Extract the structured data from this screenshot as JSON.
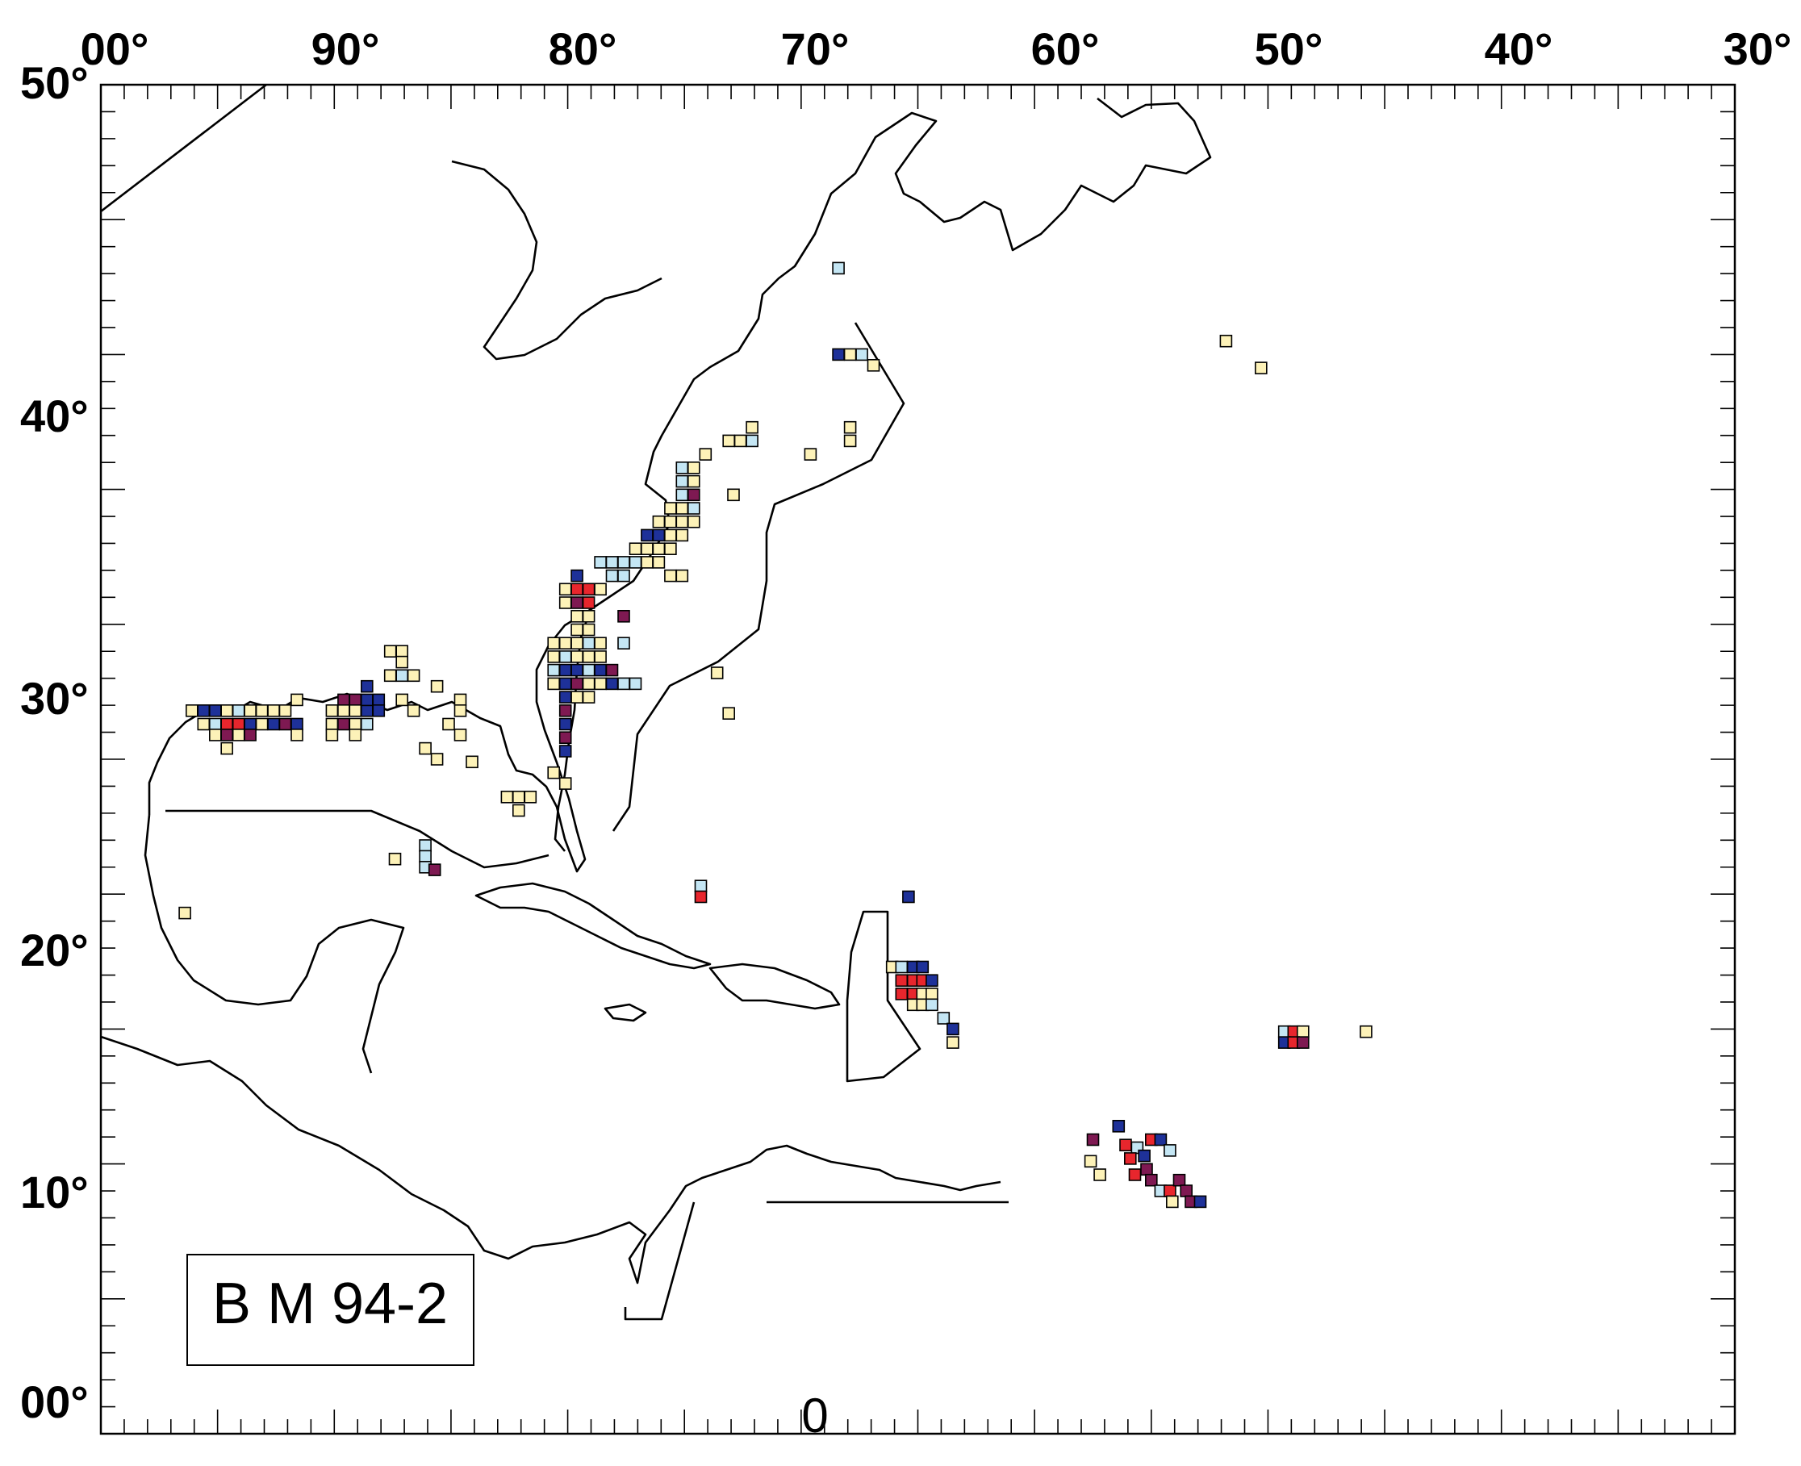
{
  "map": {
    "lon_range": [
      -100,
      -30
    ],
    "lat_range": [
      0,
      50
    ],
    "top_labels": [
      "00°",
      "90°",
      "80°",
      "70°",
      "60°",
      "50°",
      "40°",
      "30°"
    ],
    "left_labels": [
      "50°",
      "40°",
      "30°",
      "20°",
      "10°",
      "00°"
    ],
    "bottom_label": "0",
    "legend_text": "B M 94-2",
    "colors": {
      "yellow": "#fdf2b8",
      "lightblue": "#c4e6f4",
      "navy": "#1e3199",
      "red": "#e8262d",
      "purple": "#7e1952",
      "outline": "#000000"
    },
    "cells": [
      {
        "lon": -96.1,
        "lat": 26.8,
        "c": "yellow"
      },
      {
        "lon": -95.6,
        "lat": 26.8,
        "c": "navy"
      },
      {
        "lon": -95.1,
        "lat": 26.8,
        "c": "navy"
      },
      {
        "lon": -94.6,
        "lat": 26.8,
        "c": "yellow"
      },
      {
        "lon": -94.1,
        "lat": 26.8,
        "c": "lightblue"
      },
      {
        "lon": -93.6,
        "lat": 26.8,
        "c": "yellow"
      },
      {
        "lon": -93.1,
        "lat": 26.8,
        "c": "yellow"
      },
      {
        "lon": -92.6,
        "lat": 26.8,
        "c": "yellow"
      },
      {
        "lon": -92.1,
        "lat": 26.8,
        "c": "yellow"
      },
      {
        "lon": -91.6,
        "lat": 27.2,
        "c": "yellow"
      },
      {
        "lon": -95.6,
        "lat": 26.3,
        "c": "yellow"
      },
      {
        "lon": -95.1,
        "lat": 26.3,
        "c": "lightblue"
      },
      {
        "lon": -94.6,
        "lat": 26.3,
        "c": "red"
      },
      {
        "lon": -94.1,
        "lat": 26.3,
        "c": "red"
      },
      {
        "lon": -93.6,
        "lat": 26.3,
        "c": "navy"
      },
      {
        "lon": -93.1,
        "lat": 26.3,
        "c": "yellow"
      },
      {
        "lon": -92.6,
        "lat": 26.3,
        "c": "navy"
      },
      {
        "lon": -92.1,
        "lat": 26.3,
        "c": "purple"
      },
      {
        "lon": -91.6,
        "lat": 26.3,
        "c": "navy"
      },
      {
        "lon": -95.1,
        "lat": 25.9,
        "c": "yellow"
      },
      {
        "lon": -94.6,
        "lat": 25.9,
        "c": "purple"
      },
      {
        "lon": -94.1,
        "lat": 25.9,
        "c": "yellow"
      },
      {
        "lon": -93.6,
        "lat": 25.9,
        "c": "purple"
      },
      {
        "lon": -91.6,
        "lat": 25.9,
        "c": "yellow"
      },
      {
        "lon": -94.6,
        "lat": 25.4,
        "c": "yellow"
      },
      {
        "lon": -90.1,
        "lat": 26.8,
        "c": "yellow"
      },
      {
        "lon": -89.6,
        "lat": 27.2,
        "c": "purple"
      },
      {
        "lon": -89.1,
        "lat": 27.2,
        "c": "purple"
      },
      {
        "lon": -89.6,
        "lat": 26.8,
        "c": "yellow"
      },
      {
        "lon": -89.1,
        "lat": 26.8,
        "c": "yellow"
      },
      {
        "lon": -88.6,
        "lat": 26.8,
        "c": "navy"
      },
      {
        "lon": -88.6,
        "lat": 27.2,
        "c": "navy"
      },
      {
        "lon": -88.6,
        "lat": 27.7,
        "c": "navy"
      },
      {
        "lon": -88.1,
        "lat": 27.2,
        "c": "navy"
      },
      {
        "lon": -88.1,
        "lat": 26.8,
        "c": "navy"
      },
      {
        "lon": -90.1,
        "lat": 26.3,
        "c": "yellow"
      },
      {
        "lon": -89.6,
        "lat": 26.3,
        "c": "purple"
      },
      {
        "lon": -89.1,
        "lat": 26.3,
        "c": "yellow"
      },
      {
        "lon": -88.6,
        "lat": 26.3,
        "c": "lightblue"
      },
      {
        "lon": -90.1,
        "lat": 25.9,
        "c": "yellow"
      },
      {
        "lon": -89.1,
        "lat": 25.9,
        "c": "yellow"
      },
      {
        "lon": -87.6,
        "lat": 29.0,
        "c": "yellow"
      },
      {
        "lon": -87.1,
        "lat": 29.0,
        "c": "yellow"
      },
      {
        "lon": -87.1,
        "lat": 28.6,
        "c": "yellow"
      },
      {
        "lon": -87.6,
        "lat": 28.1,
        "c": "yellow"
      },
      {
        "lon": -87.1,
        "lat": 28.1,
        "c": "lightblue"
      },
      {
        "lon": -86.6,
        "lat": 28.1,
        "c": "yellow"
      },
      {
        "lon": -87.1,
        "lat": 27.2,
        "c": "yellow"
      },
      {
        "lon": -86.6,
        "lat": 26.8,
        "c": "yellow"
      },
      {
        "lon": -85.6,
        "lat": 27.7,
        "c": "yellow"
      },
      {
        "lon": -84.6,
        "lat": 27.2,
        "c": "yellow"
      },
      {
        "lon": -84.6,
        "lat": 26.8,
        "c": "yellow"
      },
      {
        "lon": -85.1,
        "lat": 26.3,
        "c": "yellow"
      },
      {
        "lon": -84.6,
        "lat": 25.9,
        "c": "yellow"
      },
      {
        "lon": -86.1,
        "lat": 25.4,
        "c": "yellow"
      },
      {
        "lon": -85.6,
        "lat": 25.0,
        "c": "yellow"
      },
      {
        "lon": -84.1,
        "lat": 24.9,
        "c": "yellow"
      },
      {
        "lon": -82.6,
        "lat": 23.6,
        "c": "yellow"
      },
      {
        "lon": -82.1,
        "lat": 23.6,
        "c": "yellow"
      },
      {
        "lon": -81.6,
        "lat": 23.6,
        "c": "yellow"
      },
      {
        "lon": -82.1,
        "lat": 23.1,
        "c": "yellow"
      },
      {
        "lon": -80.6,
        "lat": 24.5,
        "c": "yellow"
      },
      {
        "lon": -80.1,
        "lat": 24.1,
        "c": "yellow"
      },
      {
        "lon": -80.6,
        "lat": 29.3,
        "c": "yellow"
      },
      {
        "lon": -80.6,
        "lat": 28.8,
        "c": "yellow"
      },
      {
        "lon": -80.6,
        "lat": 28.3,
        "c": "lightblue"
      },
      {
        "lon": -80.6,
        "lat": 27.8,
        "c": "yellow"
      },
      {
        "lon": -80.1,
        "lat": 29.3,
        "c": "yellow"
      },
      {
        "lon": -80.1,
        "lat": 28.8,
        "c": "lightblue"
      },
      {
        "lon": -80.1,
        "lat": 28.3,
        "c": "navy"
      },
      {
        "lon": -80.1,
        "lat": 27.8,
        "c": "navy"
      },
      {
        "lon": -80.1,
        "lat": 27.3,
        "c": "navy"
      },
      {
        "lon": -80.1,
        "lat": 26.8,
        "c": "purple"
      },
      {
        "lon": -80.1,
        "lat": 26.3,
        "c": "navy"
      },
      {
        "lon": -80.1,
        "lat": 25.8,
        "c": "purple"
      },
      {
        "lon": -80.1,
        "lat": 25.3,
        "c": "navy"
      },
      {
        "lon": -79.6,
        "lat": 29.3,
        "c": "yellow"
      },
      {
        "lon": -79.6,
        "lat": 28.8,
        "c": "yellow"
      },
      {
        "lon": -79.6,
        "lat": 28.3,
        "c": "navy"
      },
      {
        "lon": -79.6,
        "lat": 27.8,
        "c": "purple"
      },
      {
        "lon": -79.6,
        "lat": 27.3,
        "c": "yellow"
      },
      {
        "lon": -79.1,
        "lat": 29.3,
        "c": "lightblue"
      },
      {
        "lon": -79.1,
        "lat": 28.8,
        "c": "yellow"
      },
      {
        "lon": -79.1,
        "lat": 28.3,
        "c": "lightblue"
      },
      {
        "lon": -79.1,
        "lat": 27.8,
        "c": "yellow"
      },
      {
        "lon": -79.1,
        "lat": 27.3,
        "c": "yellow"
      },
      {
        "lon": -78.6,
        "lat": 29.3,
        "c": "yellow"
      },
      {
        "lon": -78.6,
        "lat": 28.8,
        "c": "yellow"
      },
      {
        "lon": -78.6,
        "lat": 28.3,
        "c": "navy"
      },
      {
        "lon": -78.6,
        "lat": 27.8,
        "c": "yellow"
      },
      {
        "lon": -78.1,
        "lat": 28.3,
        "c": "purple"
      },
      {
        "lon": -78.1,
        "lat": 27.8,
        "c": "navy"
      },
      {
        "lon": -77.6,
        "lat": 27.8,
        "c": "lightblue"
      },
      {
        "lon": -77.1,
        "lat": 27.8,
        "c": "lightblue"
      },
      {
        "lon": -79.6,
        "lat": 31.8,
        "c": "navy"
      },
      {
        "lon": -79.6,
        "lat": 31.3,
        "c": "red"
      },
      {
        "lon": -79.1,
        "lat": 31.3,
        "c": "red"
      },
      {
        "lon": -79.6,
        "lat": 30.8,
        "c": "purple"
      },
      {
        "lon": -79.1,
        "lat": 30.8,
        "c": "red"
      },
      {
        "lon": -80.1,
        "lat": 31.3,
        "c": "yellow"
      },
      {
        "lon": -80.1,
        "lat": 30.8,
        "c": "yellow"
      },
      {
        "lon": -79.6,
        "lat": 30.3,
        "c": "yellow"
      },
      {
        "lon": -79.1,
        "lat": 30.3,
        "c": "yellow"
      },
      {
        "lon": -79.6,
        "lat": 29.8,
        "c": "yellow"
      },
      {
        "lon": -79.1,
        "lat": 29.8,
        "c": "yellow"
      },
      {
        "lon": -78.6,
        "lat": 31.3,
        "c": "yellow"
      },
      {
        "lon": -78.1,
        "lat": 31.8,
        "c": "lightblue"
      },
      {
        "lon": -77.6,
        "lat": 31.8,
        "c": "lightblue"
      },
      {
        "lon": -77.6,
        "lat": 30.3,
        "c": "purple"
      },
      {
        "lon": -77.6,
        "lat": 29.3,
        "c": "lightblue"
      },
      {
        "lon": -78.6,
        "lat": 32.3,
        "c": "lightblue"
      },
      {
        "lon": -78.1,
        "lat": 32.3,
        "c": "lightblue"
      },
      {
        "lon": -77.6,
        "lat": 32.3,
        "c": "lightblue"
      },
      {
        "lon": -77.1,
        "lat": 32.3,
        "c": "lightblue"
      },
      {
        "lon": -76.6,
        "lat": 32.3,
        "c": "yellow"
      },
      {
        "lon": -76.1,
        "lat": 32.3,
        "c": "yellow"
      },
      {
        "lon": -77.1,
        "lat": 32.8,
        "c": "yellow"
      },
      {
        "lon": -76.6,
        "lat": 32.8,
        "c": "yellow"
      },
      {
        "lon": -76.1,
        "lat": 32.8,
        "c": "yellow"
      },
      {
        "lon": -75.6,
        "lat": 32.8,
        "c": "yellow"
      },
      {
        "lon": -76.6,
        "lat": 33.3,
        "c": "navy"
      },
      {
        "lon": -76.1,
        "lat": 33.3,
        "c": "navy"
      },
      {
        "lon": -75.6,
        "lat": 33.3,
        "c": "yellow"
      },
      {
        "lon": -75.1,
        "lat": 33.3,
        "c": "yellow"
      },
      {
        "lon": -76.1,
        "lat": 33.8,
        "c": "yellow"
      },
      {
        "lon": -75.6,
        "lat": 33.8,
        "c": "yellow"
      },
      {
        "lon": -75.1,
        "lat": 33.8,
        "c": "yellow"
      },
      {
        "lon": -74.6,
        "lat": 33.8,
        "c": "yellow"
      },
      {
        "lon": -75.6,
        "lat": 34.3,
        "c": "yellow"
      },
      {
        "lon": -75.1,
        "lat": 34.3,
        "c": "yellow"
      },
      {
        "lon": -74.6,
        "lat": 34.3,
        "c": "lightblue"
      },
      {
        "lon": -75.1,
        "lat": 34.8,
        "c": "lightblue"
      },
      {
        "lon": -74.6,
        "lat": 34.8,
        "c": "purple"
      },
      {
        "lon": -75.1,
        "lat": 35.3,
        "c": "lightblue"
      },
      {
        "lon": -74.6,
        "lat": 35.3,
        "c": "yellow"
      },
      {
        "lon": -75.1,
        "lat": 35.8,
        "c": "lightblue"
      },
      {
        "lon": -74.6,
        "lat": 35.8,
        "c": "yellow"
      },
      {
        "lon": -74.1,
        "lat": 36.3,
        "c": "yellow"
      },
      {
        "lon": -73.1,
        "lat": 36.8,
        "c": "yellow"
      },
      {
        "lon": -72.6,
        "lat": 36.8,
        "c": "yellow"
      },
      {
        "lon": -72.1,
        "lat": 36.8,
        "c": "lightblue"
      },
      {
        "lon": -72.1,
        "lat": 37.3,
        "c": "yellow"
      },
      {
        "lon": -75.6,
        "lat": 31.8,
        "c": "yellow"
      },
      {
        "lon": -75.1,
        "lat": 31.8,
        "c": "yellow"
      },
      {
        "lon": -72.9,
        "lat": 34.8,
        "c": "yellow"
      },
      {
        "lon": -69.6,
        "lat": 36.3,
        "c": "yellow"
      },
      {
        "lon": -67.9,
        "lat": 37.3,
        "c": "yellow"
      },
      {
        "lon": -67.9,
        "lat": 36.8,
        "c": "yellow"
      },
      {
        "lon": -68.4,
        "lat": 40.0,
        "c": "navy"
      },
      {
        "lon": -67.9,
        "lat": 40.0,
        "c": "yellow"
      },
      {
        "lon": -67.4,
        "lat": 40.0,
        "c": "lightblue"
      },
      {
        "lon": -66.9,
        "lat": 39.6,
        "c": "yellow"
      },
      {
        "lon": -68.4,
        "lat": 43.2,
        "c": "lightblue"
      },
      {
        "lon": -73.6,
        "lat": 28.2,
        "c": "yellow"
      },
      {
        "lon": -73.1,
        "lat": 26.7,
        "c": "yellow"
      },
      {
        "lon": -51.8,
        "lat": 40.5,
        "c": "yellow"
      },
      {
        "lon": -50.3,
        "lat": 39.5,
        "c": "yellow"
      },
      {
        "lon": -86.1,
        "lat": 21.8,
        "c": "lightblue"
      },
      {
        "lon": -86.1,
        "lat": 21.4,
        "c": "lightblue"
      },
      {
        "lon": -86.1,
        "lat": 21.0,
        "c": "lightblue"
      },
      {
        "lon": -85.7,
        "lat": 20.9,
        "c": "purple"
      },
      {
        "lon": -87.4,
        "lat": 21.3,
        "c": "yellow"
      },
      {
        "lon": -96.4,
        "lat": 19.3,
        "c": "yellow"
      },
      {
        "lon": -74.3,
        "lat": 20.3,
        "c": "lightblue"
      },
      {
        "lon": -74.3,
        "lat": 19.9,
        "c": "red"
      },
      {
        "lon": -65.4,
        "lat": 19.9,
        "c": "navy"
      },
      {
        "lon": -66.1,
        "lat": 17.3,
        "c": "yellow"
      },
      {
        "lon": -65.7,
        "lat": 17.3,
        "c": "lightblue"
      },
      {
        "lon": -65.2,
        "lat": 17.3,
        "c": "navy"
      },
      {
        "lon": -64.8,
        "lat": 17.3,
        "c": "navy"
      },
      {
        "lon": -65.7,
        "lat": 16.8,
        "c": "red"
      },
      {
        "lon": -65.2,
        "lat": 16.8,
        "c": "red"
      },
      {
        "lon": -64.8,
        "lat": 16.8,
        "c": "red"
      },
      {
        "lon": -64.4,
        "lat": 16.8,
        "c": "navy"
      },
      {
        "lon": -65.7,
        "lat": 16.3,
        "c": "red"
      },
      {
        "lon": -65.2,
        "lat": 16.3,
        "c": "red"
      },
      {
        "lon": -64.8,
        "lat": 16.3,
        "c": "yellow"
      },
      {
        "lon": -64.4,
        "lat": 16.3,
        "c": "yellow"
      },
      {
        "lon": -65.2,
        "lat": 15.9,
        "c": "yellow"
      },
      {
        "lon": -64.8,
        "lat": 15.9,
        "c": "yellow"
      },
      {
        "lon": -64.4,
        "lat": 15.9,
        "c": "lightblue"
      },
      {
        "lon": -63.9,
        "lat": 15.4,
        "c": "lightblue"
      },
      {
        "lon": -63.5,
        "lat": 15.0,
        "c": "navy"
      },
      {
        "lon": -63.5,
        "lat": 14.5,
        "c": "yellow"
      },
      {
        "lon": -49.3,
        "lat": 14.9,
        "c": "lightblue"
      },
      {
        "lon": -48.9,
        "lat": 14.9,
        "c": "red"
      },
      {
        "lon": -48.5,
        "lat": 14.9,
        "c": "yellow"
      },
      {
        "lon": -49.3,
        "lat": 14.5,
        "c": "navy"
      },
      {
        "lon": -48.9,
        "lat": 14.5,
        "c": "red"
      },
      {
        "lon": -48.5,
        "lat": 14.5,
        "c": "purple"
      },
      {
        "lon": -45.8,
        "lat": 14.9,
        "c": "yellow"
      },
      {
        "lon": -56.4,
        "lat": 11.4,
        "c": "navy"
      },
      {
        "lon": -57.5,
        "lat": 10.9,
        "c": "purple"
      },
      {
        "lon": -56.1,
        "lat": 10.7,
        "c": "red"
      },
      {
        "lon": -55.6,
        "lat": 10.6,
        "c": "lightblue"
      },
      {
        "lon": -55.0,
        "lat": 10.9,
        "c": "red"
      },
      {
        "lon": -54.6,
        "lat": 10.9,
        "c": "navy"
      },
      {
        "lon": -54.2,
        "lat": 10.5,
        "c": "lightblue"
      },
      {
        "lon": -55.9,
        "lat": 10.2,
        "c": "red"
      },
      {
        "lon": -55.3,
        "lat": 10.3,
        "c": "navy"
      },
      {
        "lon": -57.6,
        "lat": 10.1,
        "c": "yellow"
      },
      {
        "lon": -57.2,
        "lat": 9.6,
        "c": "yellow"
      },
      {
        "lon": -55.7,
        "lat": 9.6,
        "c": "red"
      },
      {
        "lon": -55.2,
        "lat": 9.8,
        "c": "purple"
      },
      {
        "lon": -55.0,
        "lat": 9.4,
        "c": "purple"
      },
      {
        "lon": -54.6,
        "lat": 9.0,
        "c": "lightblue"
      },
      {
        "lon": -54.2,
        "lat": 9.0,
        "c": "red"
      },
      {
        "lon": -53.8,
        "lat": 9.4,
        "c": "purple"
      },
      {
        "lon": -53.5,
        "lat": 9.0,
        "c": "purple"
      },
      {
        "lon": -54.1,
        "lat": 8.6,
        "c": "yellow"
      },
      {
        "lon": -53.3,
        "lat": 8.6,
        "c": "purple"
      },
      {
        "lon": -52.9,
        "lat": 8.6,
        "c": "navy"
      }
    ]
  }
}
